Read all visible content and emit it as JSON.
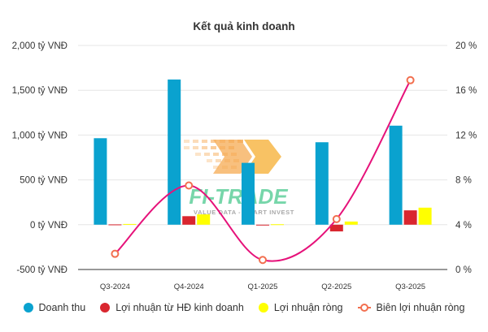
{
  "chart_data": {
    "type": "bar",
    "title": "Kết quả kinh doanh",
    "categories": [
      "Q3-2024",
      "Q4-2024",
      "Q1-2025",
      "Q2-2025",
      "Q3-2025"
    ],
    "y_left": {
      "ticks": [
        "-500 tỷ VNĐ",
        "0 tỷ VNĐ",
        "500 tỷ VNĐ",
        "1,000 tỷ VNĐ",
        "1,500 tỷ VNĐ",
        "2,000 tỷ VNĐ"
      ],
      "range": [
        -500,
        2000
      ]
    },
    "y_right": {
      "ticks": [
        "0 %",
        "4 %",
        "8 %",
        "12 %",
        "16 %",
        "20 %"
      ],
      "range": [
        0,
        20
      ]
    },
    "series": [
      {
        "name": "Doanh thu",
        "type": "bar",
        "axis": "left",
        "color": "#0aa2cf",
        "values": [
          965,
          1620,
          690,
          920,
          1105
        ]
      },
      {
        "name": "Lợi nhuận từ HĐ kinh doanh",
        "type": "bar",
        "axis": "left",
        "color": "#d9262f",
        "values": [
          3,
          95,
          -3,
          -75,
          160
        ]
      },
      {
        "name": "Lợi nhuận ròng",
        "type": "bar",
        "axis": "left",
        "color": "#ffff00",
        "values": [
          8,
          115,
          5,
          35,
          190
        ]
      },
      {
        "name": "Biên lợi nhuận ròng",
        "type": "line",
        "axis": "right",
        "color": "#e6127a",
        "marker_color": "#f26f4f",
        "values": [
          1.4,
          7.5,
          0.85,
          4.5,
          16.9
        ]
      }
    ],
    "grid": "horizontal",
    "legend_position": "bottom"
  },
  "watermark": {
    "text": "FI-TRADE",
    "tagline": "VALUE DATA - SMART INVEST"
  }
}
